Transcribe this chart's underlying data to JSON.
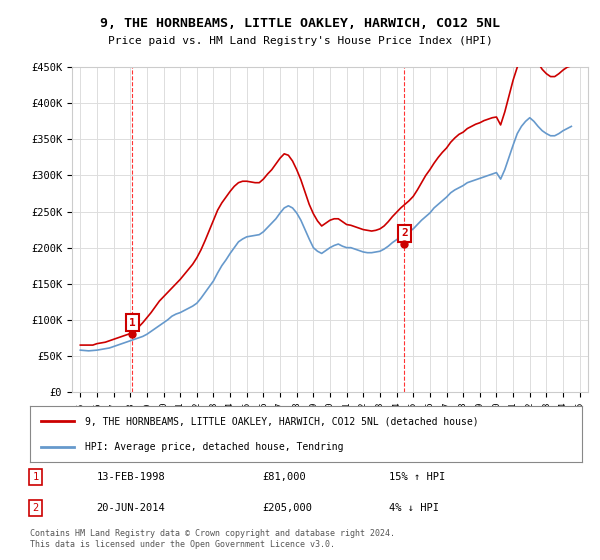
{
  "title": "9, THE HORNBEAMS, LITTLE OAKLEY, HARWICH, CO12 5NL",
  "subtitle": "Price paid vs. HM Land Registry's House Price Index (HPI)",
  "legend_line1": "9, THE HORNBEAMS, LITTLE OAKLEY, HARWICH, CO12 5NL (detached house)",
  "legend_line2": "HPI: Average price, detached house, Tendring",
  "footnote": "Contains HM Land Registry data © Crown copyright and database right 2024.\nThis data is licensed under the Open Government Licence v3.0.",
  "sale1_label": "1",
  "sale1_date": "13-FEB-1998",
  "sale1_price": "£81,000",
  "sale1_hpi": "15% ↑ HPI",
  "sale1_year": 1998.12,
  "sale1_value": 81000,
  "sale2_label": "2",
  "sale2_date": "20-JUN-2014",
  "sale2_price": "£205,000",
  "sale2_hpi": "4% ↓ HPI",
  "sale2_year": 2014.47,
  "sale2_value": 205000,
  "xlim": [
    1994.5,
    2025.5
  ],
  "ylim": [
    0,
    450000
  ],
  "yticks": [
    0,
    50000,
    100000,
    150000,
    200000,
    250000,
    300000,
    350000,
    400000,
    450000
  ],
  "ytick_labels": [
    "£0",
    "£50K",
    "£100K",
    "£150K",
    "£200K",
    "£250K",
    "£300K",
    "£350K",
    "£400K",
    "£450K"
  ],
  "xticks": [
    1995,
    1996,
    1997,
    1998,
    1999,
    2000,
    2001,
    2002,
    2003,
    2004,
    2005,
    2006,
    2007,
    2008,
    2009,
    2010,
    2011,
    2012,
    2013,
    2014,
    2015,
    2016,
    2017,
    2018,
    2019,
    2020,
    2021,
    2022,
    2023,
    2024,
    2025
  ],
  "property_color": "#cc0000",
  "hpi_color": "#6699cc",
  "background_color": "#ffffff",
  "grid_color": "#dddddd",
  "vline_color": "#ff0000",
  "box_color": "#cc0000",
  "hpi_data": {
    "years": [
      1995.0,
      1995.25,
      1995.5,
      1995.75,
      1996.0,
      1996.25,
      1996.5,
      1996.75,
      1997.0,
      1997.25,
      1997.5,
      1997.75,
      1998.0,
      1998.25,
      1998.5,
      1998.75,
      1999.0,
      1999.25,
      1999.5,
      1999.75,
      2000.0,
      2000.25,
      2000.5,
      2000.75,
      2001.0,
      2001.25,
      2001.5,
      2001.75,
      2002.0,
      2002.25,
      2002.5,
      2002.75,
      2003.0,
      2003.25,
      2003.5,
      2003.75,
      2004.0,
      2004.25,
      2004.5,
      2004.75,
      2005.0,
      2005.25,
      2005.5,
      2005.75,
      2006.0,
      2006.25,
      2006.5,
      2006.75,
      2007.0,
      2007.25,
      2007.5,
      2007.75,
      2008.0,
      2008.25,
      2008.5,
      2008.75,
      2009.0,
      2009.25,
      2009.5,
      2009.75,
      2010.0,
      2010.25,
      2010.5,
      2010.75,
      2011.0,
      2011.25,
      2011.5,
      2011.75,
      2012.0,
      2012.25,
      2012.5,
      2012.75,
      2013.0,
      2013.25,
      2013.5,
      2013.75,
      2014.0,
      2014.25,
      2014.5,
      2014.75,
      2015.0,
      2015.25,
      2015.5,
      2015.75,
      2016.0,
      2016.25,
      2016.5,
      2016.75,
      2017.0,
      2017.25,
      2017.5,
      2017.75,
      2018.0,
      2018.25,
      2018.5,
      2018.75,
      2019.0,
      2019.25,
      2019.5,
      2019.75,
      2020.0,
      2020.25,
      2020.5,
      2020.75,
      2021.0,
      2021.25,
      2021.5,
      2021.75,
      2022.0,
      2022.25,
      2022.5,
      2022.75,
      2023.0,
      2023.25,
      2023.5,
      2023.75,
      2024.0,
      2024.25,
      2024.5
    ],
    "values": [
      58000,
      57500,
      57000,
      57500,
      58000,
      59000,
      60000,
      61000,
      63000,
      65000,
      67000,
      69000,
      71000,
      73000,
      75000,
      77000,
      80000,
      84000,
      88000,
      92000,
      96000,
      100000,
      105000,
      108000,
      110000,
      113000,
      116000,
      119000,
      123000,
      130000,
      138000,
      146000,
      154000,
      165000,
      175000,
      183000,
      192000,
      200000,
      208000,
      212000,
      215000,
      216000,
      217000,
      218000,
      222000,
      228000,
      234000,
      240000,
      248000,
      255000,
      258000,
      255000,
      248000,
      238000,
      225000,
      212000,
      200000,
      195000,
      192000,
      196000,
      200000,
      203000,
      205000,
      202000,
      200000,
      200000,
      198000,
      196000,
      194000,
      193000,
      193000,
      194000,
      195000,
      198000,
      202000,
      207000,
      211000,
      215000,
      218000,
      222000,
      226000,
      232000,
      238000,
      243000,
      248000,
      255000,
      260000,
      265000,
      270000,
      276000,
      280000,
      283000,
      286000,
      290000,
      292000,
      294000,
      296000,
      298000,
      300000,
      302000,
      304000,
      295000,
      308000,
      325000,
      342000,
      358000,
      368000,
      375000,
      380000,
      375000,
      368000,
      362000,
      358000,
      355000,
      355000,
      358000,
      362000,
      365000,
      368000
    ]
  },
  "property_data": {
    "years": [
      1995.0,
      1995.25,
      1995.5,
      1995.75,
      1996.0,
      1996.25,
      1996.5,
      1996.75,
      1997.0,
      1997.25,
      1997.5,
      1997.75,
      1998.0,
      1998.25,
      1998.5,
      1998.75,
      1999.0,
      1999.25,
      1999.5,
      1999.75,
      2000.0,
      2000.25,
      2000.5,
      2000.75,
      2001.0,
      2001.25,
      2001.5,
      2001.75,
      2002.0,
      2002.25,
      2002.5,
      2002.75,
      2003.0,
      2003.25,
      2003.5,
      2003.75,
      2004.0,
      2004.25,
      2004.5,
      2004.75,
      2005.0,
      2005.25,
      2005.5,
      2005.75,
      2006.0,
      2006.25,
      2006.5,
      2006.75,
      2007.0,
      2007.25,
      2007.5,
      2007.75,
      2008.0,
      2008.25,
      2008.5,
      2008.75,
      2009.0,
      2009.25,
      2009.5,
      2009.75,
      2010.0,
      2010.25,
      2010.5,
      2010.75,
      2011.0,
      2011.25,
      2011.5,
      2011.75,
      2012.0,
      2012.25,
      2012.5,
      2012.75,
      2013.0,
      2013.25,
      2013.5,
      2013.75,
      2014.0,
      2014.25,
      2014.5,
      2014.75,
      2015.0,
      2015.25,
      2015.5,
      2015.75,
      2016.0,
      2016.25,
      2016.5,
      2016.75,
      2017.0,
      2017.25,
      2017.5,
      2017.75,
      2018.0,
      2018.25,
      2018.5,
      2018.75,
      2019.0,
      2019.25,
      2019.5,
      2019.75,
      2020.0,
      2020.25,
      2020.5,
      2020.75,
      2021.0,
      2021.25,
      2021.5,
      2021.75,
      2022.0,
      2022.25,
      2022.5,
      2022.75,
      2023.0,
      2023.25,
      2023.5,
      2023.75,
      2024.0,
      2024.25,
      2024.5
    ],
    "values": [
      65000,
      65000,
      65000,
      65000,
      67000,
      68000,
      69000,
      71000,
      73000,
      75000,
      77000,
      79000,
      81000,
      85000,
      90000,
      96000,
      103000,
      110000,
      118000,
      126000,
      132000,
      138000,
      144000,
      150000,
      156000,
      163000,
      170000,
      177000,
      186000,
      197000,
      210000,
      224000,
      238000,
      252000,
      262000,
      270000,
      278000,
      285000,
      290000,
      292000,
      292000,
      291000,
      290000,
      290000,
      295000,
      302000,
      308000,
      316000,
      324000,
      330000,
      328000,
      320000,
      308000,
      294000,
      277000,
      260000,
      247000,
      237000,
      230000,
      234000,
      238000,
      240000,
      240000,
      236000,
      232000,
      231000,
      229000,
      227000,
      225000,
      224000,
      223000,
      224000,
      226000,
      230000,
      236000,
      243000,
      249000,
      255000,
      260000,
      265000,
      271000,
      280000,
      290000,
      300000,
      308000,
      317000,
      325000,
      332000,
      338000,
      346000,
      352000,
      357000,
      360000,
      365000,
      368000,
      371000,
      373000,
      376000,
      378000,
      380000,
      381000,
      370000,
      388000,
      410000,
      432000,
      450000,
      462000,
      470000,
      473000,
      465000,
      456000,
      447000,
      441000,
      437000,
      437000,
      441000,
      446000,
      450000,
      452000
    ]
  }
}
